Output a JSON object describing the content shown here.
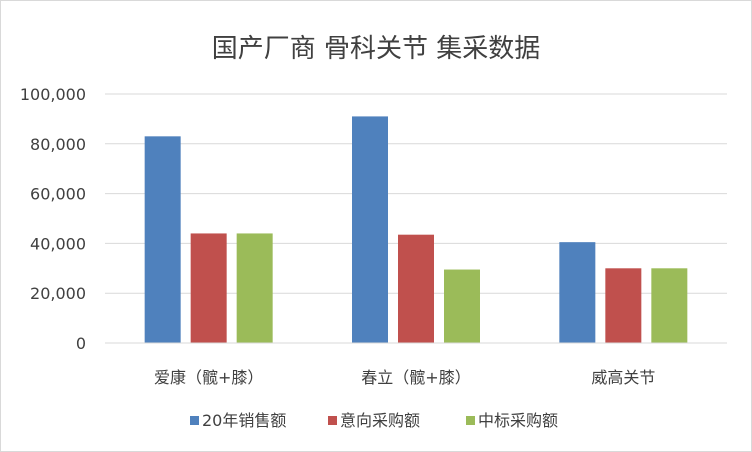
{
  "chart_data": {
    "type": "bar",
    "title": "国产厂商 骨科关节 集采数据",
    "categories": [
      "爱康（髋+膝）",
      "春立（髋+膝）",
      "威高关节"
    ],
    "series": [
      {
        "name": "20年销售额",
        "color": "#4f81bd",
        "values": [
          83000,
          91000,
          40500
        ]
      },
      {
        "name": "意向采购额",
        "color": "#c0504d",
        "values": [
          44000,
          43500,
          30000
        ]
      },
      {
        "name": "中标采购额",
        "color": "#9bbb59",
        "values": [
          44000,
          29500,
          30000
        ]
      }
    ],
    "ylim": [
      0,
      100000
    ],
    "yticks": [
      "0",
      "20,000",
      "40,000",
      "60,000",
      "80,000",
      "100,000"
    ],
    "ytick_values": [
      0,
      20000,
      40000,
      60000,
      80000,
      100000
    ],
    "grid": true,
    "legend_position": "bottom"
  }
}
